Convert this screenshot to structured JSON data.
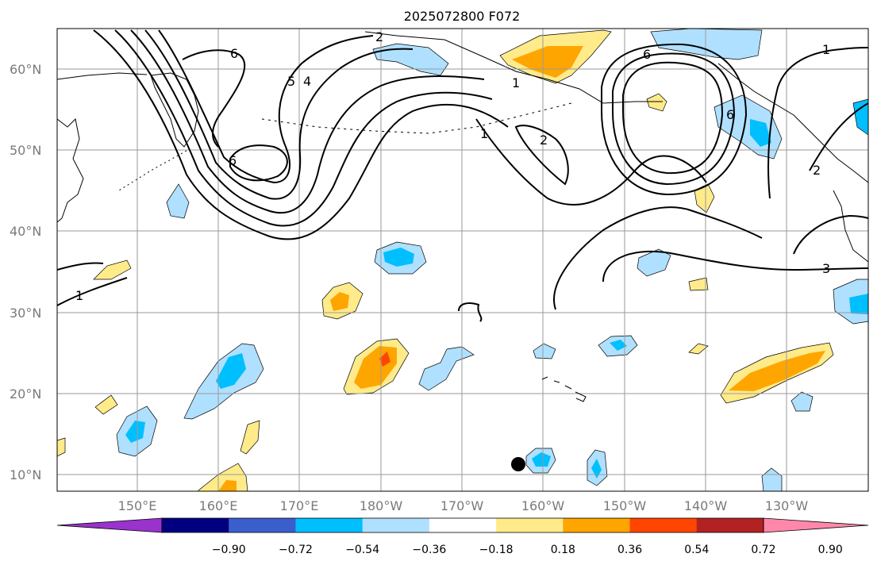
{
  "title": "2025072800 F072",
  "lat_labels": [
    "10°N",
    "20°N",
    "30°N",
    "40°N",
    "50°N",
    "60°N"
  ],
  "lon_labels": [
    "150°E",
    "160°E",
    "170°E",
    "180°W",
    "170°W",
    "160°W",
    "150°W",
    "140°W",
    "130°W"
  ],
  "colorbar": {
    "ticks": [
      "−0.90",
      "−0.72",
      "−0.54",
      "−0.36",
      "−0.18",
      "0.18",
      "0.36",
      "0.54",
      "0.72",
      "0.90"
    ],
    "colors": [
      "#9933cc",
      "#000080",
      "#3a5fcd",
      "#00bfff",
      "#b0e0ff",
      "#ffffff",
      "#ffeb8a",
      "#ffa500",
      "#ff4500",
      "#b22222",
      "#ff88aa"
    ]
  },
  "contour_labels": [
    "1",
    "2",
    "3",
    "4",
    "5",
    "6"
  ],
  "colors": {
    "positive_shade": "#ffa500",
    "negative_shade": "#00bfff",
    "contour": "#000000"
  },
  "marker": "black-dot"
}
